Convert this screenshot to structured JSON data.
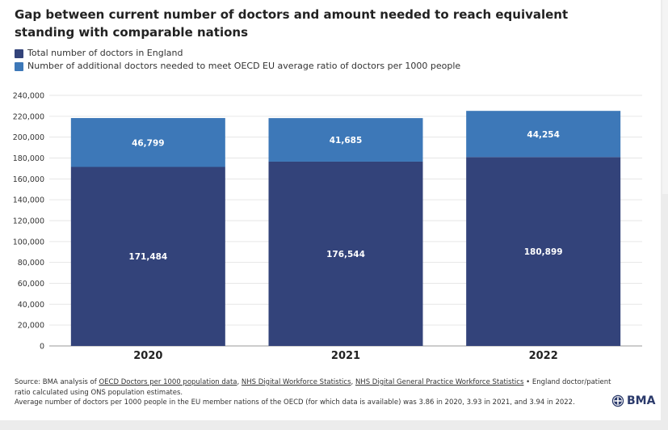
{
  "title": "Gap between current number of doctors and amount needed to reach equivalent standing with comparable nations",
  "legend": [
    {
      "label": "Total number of doctors in England",
      "color": "#33437a"
    },
    {
      "label": "Number of additional doctors needed to meet OECD EU average ratio of doctors per 1000 people",
      "color": "#3d78b8"
    }
  ],
  "footer": {
    "source_prefix": "Source: BMA analysis of ",
    "link1": "OECD Doctors per 1000 population data",
    "sep1": ", ",
    "link2": "NHS Digital Workforce Statistics",
    "sep2": ", ",
    "link3": "NHS Digital General Practice Workforce Statistics",
    "suffix": " • England doctor/patient ratio calculated using ONS population estimates.",
    "note": "Average number of doctors per 1000 people in the EU member nations of the OECD (for which data is available) was 3.86 in 2020, 3.93 in 2021, and 3.94 in 2022."
  },
  "logo": {
    "text": "BMA",
    "icon": "bma-crest-icon"
  },
  "chart_data": {
    "type": "bar",
    "stacked": true,
    "categories": [
      "2020",
      "2021",
      "2022"
    ],
    "series": [
      {
        "name": "Total number of doctors in England",
        "values": [
          171484,
          176544,
          180899
        ],
        "labels": [
          "171,484",
          "176,544",
          "180,899"
        ],
        "color": "#33437a"
      },
      {
        "name": "Number of additional doctors needed to meet OECD EU average ratio of doctors per 1000 people",
        "values": [
          46799,
          41685,
          44254
        ],
        "labels": [
          "46,799",
          "41,685",
          "44,254"
        ],
        "color": "#3d78b8"
      }
    ],
    "ylim": [
      0,
      240000
    ],
    "yticks": [
      0,
      20000,
      40000,
      60000,
      80000,
      100000,
      120000,
      140000,
      160000,
      180000,
      200000,
      220000,
      240000
    ],
    "ytick_labels": [
      "0",
      "20,000",
      "40,000",
      "60,000",
      "80,000",
      "100,000",
      "120,000",
      "140,000",
      "160,000",
      "180,000",
      "200,000",
      "220,000",
      "240,000"
    ],
    "grid": true,
    "legend_position": "top-left",
    "xlabel": "",
    "ylabel": ""
  }
}
